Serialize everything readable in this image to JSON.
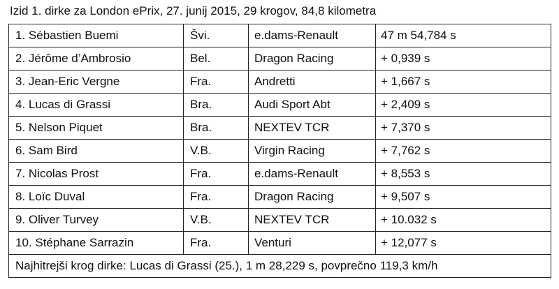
{
  "caption": "Izid 1. dirke za London ePrix, 27. junij 2015, 29 krogov, 84,8 kilometra",
  "table": {
    "rows": [
      [
        "1. Sébastien Buemi",
        "Švi.",
        "e.dams-Renault",
        "47 m 54,784 s"
      ],
      [
        "2. Jérôme d’Ambrosio",
        "Bel.",
        "Dragon Racing",
        "+ 0,939 s"
      ],
      [
        "3. Jean-Eric Vergne",
        "Fra.",
        "Andretti",
        "+ 1,667 s"
      ],
      [
        "4. Lucas di Grassi",
        "Bra.",
        "Audi Sport Abt",
        "+ 2,409 s"
      ],
      [
        "5. Nelson Piquet",
        "Bra.",
        "NEXTEV TCR",
        "+ 7,370 s"
      ],
      [
        "6. Sam Bird",
        "V.B.",
        "Virgin Racing",
        "+ 7,762 s"
      ],
      [
        "7. Nicolas Prost",
        "Fra.",
        "e.dams-Renault",
        "+ 8,553 s"
      ],
      [
        "8. Loïc Duval",
        "Fra.",
        "Dragon Racing",
        "+ 9,507 s"
      ],
      [
        "9. Oliver Turvey",
        "V.B.",
        "NEXTEV TCR",
        "+ 10.032 s"
      ],
      [
        "10. Stéphane Sarrazin",
        "Fra.",
        "Venturi",
        "+ 12,077 s"
      ]
    ],
    "footer": "Najhitrejši krog dirke: Lucas di Grassi (25.), 1 m 28,229 s, povprečno 119,3 km/h"
  }
}
